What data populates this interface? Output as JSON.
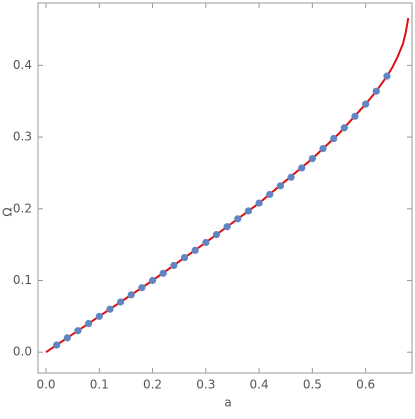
{
  "chart_data": {
    "type": "line",
    "x_label": "a",
    "y_label": "Ω",
    "xlim": [
      -0.015,
      0.687
    ],
    "ylim": [
      -0.029,
      0.487
    ],
    "xticks": [
      {
        "value": 0,
        "label": "0.0"
      },
      0.1,
      0.2,
      0.3,
      0.4,
      0.5,
      0.6
    ],
    "yticks": [
      {
        "value": 0,
        "label": "0.0"
      },
      0.1,
      0.2,
      0.3,
      0.4
    ],
    "series": [
      {
        "color": "#dd1111",
        "mode": "line",
        "x": [
          0,
          0.1,
          0.2,
          0.3,
          0.4,
          0.5,
          0.55,
          0.6,
          0.62,
          0.64,
          0.65,
          0.66,
          0.67,
          0.675,
          0.68
        ],
        "values": [
          0,
          0.05,
          0.1,
          0.153,
          0.208,
          0.27,
          0.305,
          0.346,
          0.364,
          0.385,
          0.397,
          0.412,
          0.43,
          0.445,
          0.466
        ]
      },
      {
        "color": "#5f86c3",
        "mode": "markers",
        "x": [
          0.02,
          0.04,
          0.06,
          0.08,
          0.1,
          0.12,
          0.14,
          0.16,
          0.18,
          0.2,
          0.22,
          0.24,
          0.26,
          0.28,
          0.3,
          0.32,
          0.34,
          0.36,
          0.38,
          0.4,
          0.42,
          0.44,
          0.46,
          0.48,
          0.5,
          0.52,
          0.54,
          0.56,
          0.58,
          0.6,
          0.62,
          0.64
        ],
        "values": [
          0.01,
          0.02,
          0.03,
          0.04,
          0.05,
          0.06,
          0.07,
          0.08,
          0.09,
          0.1,
          0.11,
          0.121,
          0.132,
          0.142,
          0.153,
          0.164,
          0.175,
          0.186,
          0.197,
          0.208,
          0.22,
          0.232,
          0.244,
          0.257,
          0.27,
          0.284,
          0.298,
          0.313,
          0.329,
          0.346,
          0.364,
          0.385
        ]
      }
    ]
  }
}
